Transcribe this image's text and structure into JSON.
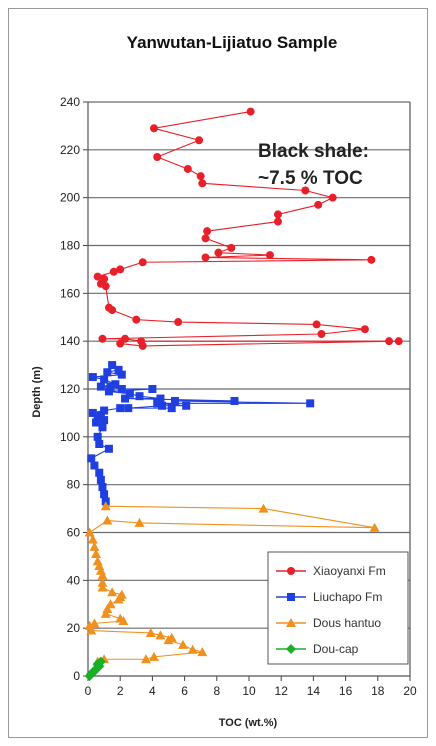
{
  "chart_data": {
    "type": "scatter",
    "title": "Yanwutan-Lijiatuo Sample",
    "xlabel": "TOC (wt.%)",
    "ylabel": "Depth (m)",
    "xlim": [
      0,
      20
    ],
    "ylim": [
      0,
      240
    ],
    "xticks": [
      "0",
      "2",
      "4",
      "6",
      "8",
      "10",
      "12",
      "14",
      "16",
      "18",
      "20"
    ],
    "yticks": [
      "0",
      "20",
      "40",
      "60",
      "80",
      "100",
      "120",
      "140",
      "160",
      "180",
      "200",
      "220",
      "240"
    ],
    "grid": "horizontal",
    "legend_position": "bottom-right",
    "annotation": [
      "Black shale:",
      "~7.5 % TOC"
    ],
    "series": [
      {
        "name": "Xiaoyanxi Fm",
        "color": "#e8202a",
        "marker": "circle",
        "points": [
          [
            10.1,
            236
          ],
          [
            4.1,
            229
          ],
          [
            6.9,
            224
          ],
          [
            4.3,
            217
          ],
          [
            6.2,
            212
          ],
          [
            7.0,
            209
          ],
          [
            7.1,
            206
          ],
          [
            13.5,
            203
          ],
          [
            15.2,
            200
          ],
          [
            14.3,
            197
          ],
          [
            11.8,
            193
          ],
          [
            11.8,
            190
          ],
          [
            7.4,
            186
          ],
          [
            7.3,
            183
          ],
          [
            8.9,
            179
          ],
          [
            8.1,
            177
          ],
          [
            11.3,
            176
          ],
          [
            7.3,
            175
          ],
          [
            17.6,
            174
          ],
          [
            3.4,
            173
          ],
          [
            2.0,
            170
          ],
          [
            1.6,
            169
          ],
          [
            0.6,
            167
          ],
          [
            1.0,
            166
          ],
          [
            0.8,
            164
          ],
          [
            1.1,
            163
          ],
          [
            1.3,
            154
          ],
          [
            1.5,
            153
          ],
          [
            3.0,
            149
          ],
          [
            5.6,
            148
          ],
          [
            14.2,
            147
          ],
          [
            17.2,
            145
          ],
          [
            14.5,
            143
          ],
          [
            0.9,
            141
          ],
          [
            2.3,
            141
          ],
          [
            3.3,
            140
          ],
          [
            18.7,
            140
          ],
          [
            19.3,
            140
          ],
          [
            3.4,
            138
          ],
          [
            2.0,
            139
          ]
        ]
      },
      {
        "name": "Liuchapo Fm",
        "color": "#1f3fe0",
        "marker": "square",
        "points": [
          [
            1.5,
            130
          ],
          [
            1.9,
            128
          ],
          [
            1.2,
            127
          ],
          [
            2.1,
            126
          ],
          [
            0.3,
            125
          ],
          [
            1.0,
            124
          ],
          [
            1.7,
            122
          ],
          [
            0.8,
            121
          ],
          [
            1.4,
            121
          ],
          [
            2.1,
            120
          ],
          [
            4.0,
            120
          ],
          [
            1.3,
            119
          ],
          [
            2.6,
            118
          ],
          [
            3.2,
            117
          ],
          [
            4.5,
            116
          ],
          [
            2.3,
            116
          ],
          [
            9.1,
            115
          ],
          [
            5.4,
            115
          ],
          [
            13.8,
            114
          ],
          [
            4.3,
            114
          ],
          [
            6.1,
            113
          ],
          [
            4.6,
            113
          ],
          [
            2.5,
            112
          ],
          [
            5.2,
            112
          ],
          [
            2.0,
            112
          ],
          [
            1.0,
            111
          ],
          [
            0.3,
            110
          ],
          [
            0.8,
            109
          ],
          [
            0.6,
            108
          ],
          [
            1.0,
            107
          ],
          [
            0.5,
            106
          ],
          [
            0.9,
            104
          ],
          [
            0.6,
            100
          ],
          [
            0.7,
            97
          ],
          [
            1.3,
            95
          ],
          [
            0.2,
            91
          ],
          [
            0.4,
            88
          ],
          [
            0.7,
            85
          ],
          [
            0.8,
            82
          ],
          [
            0.9,
            79
          ],
          [
            1.0,
            76
          ],
          [
            1.1,
            73
          ]
        ]
      },
      {
        "name": "Dous hantuo",
        "color": "#f0901e",
        "marker": "triangle",
        "points": [
          [
            1.1,
            71
          ],
          [
            10.9,
            70
          ],
          [
            17.8,
            62
          ],
          [
            3.2,
            64
          ],
          [
            1.2,
            65
          ],
          [
            0.1,
            60
          ],
          [
            0.3,
            57
          ],
          [
            0.4,
            54
          ],
          [
            0.5,
            51
          ],
          [
            0.6,
            48
          ],
          [
            0.7,
            46
          ],
          [
            0.8,
            44
          ],
          [
            0.9,
            42
          ],
          [
            0.9,
            39
          ],
          [
            0.9,
            37
          ],
          [
            1.5,
            35
          ],
          [
            2.1,
            34
          ],
          [
            2.0,
            33
          ],
          [
            1.9,
            32
          ],
          [
            1.4,
            30
          ],
          [
            1.2,
            28
          ],
          [
            1.1,
            26
          ],
          [
            2.0,
            24
          ],
          [
            2.2,
            23
          ],
          [
            0.4,
            22
          ],
          [
            0.1,
            21
          ],
          [
            0.2,
            19
          ],
          [
            3.9,
            18
          ],
          [
            4.5,
            17
          ],
          [
            5.2,
            16
          ],
          [
            5.0,
            15
          ],
          [
            5.9,
            13
          ],
          [
            6.5,
            11
          ],
          [
            7.1,
            10
          ],
          [
            4.1,
            8
          ],
          [
            3.6,
            7
          ],
          [
            1.0,
            7
          ],
          [
            0.6,
            6
          ]
        ]
      },
      {
        "name": "Dou-cap",
        "color": "#19b025",
        "marker": "diamond",
        "points": [
          [
            0.8,
            6
          ],
          [
            0.6,
            5
          ],
          [
            0.7,
            4
          ],
          [
            0.5,
            3
          ],
          [
            0.4,
            2
          ],
          [
            0.2,
            1
          ],
          [
            0.1,
            0
          ]
        ]
      }
    ]
  }
}
